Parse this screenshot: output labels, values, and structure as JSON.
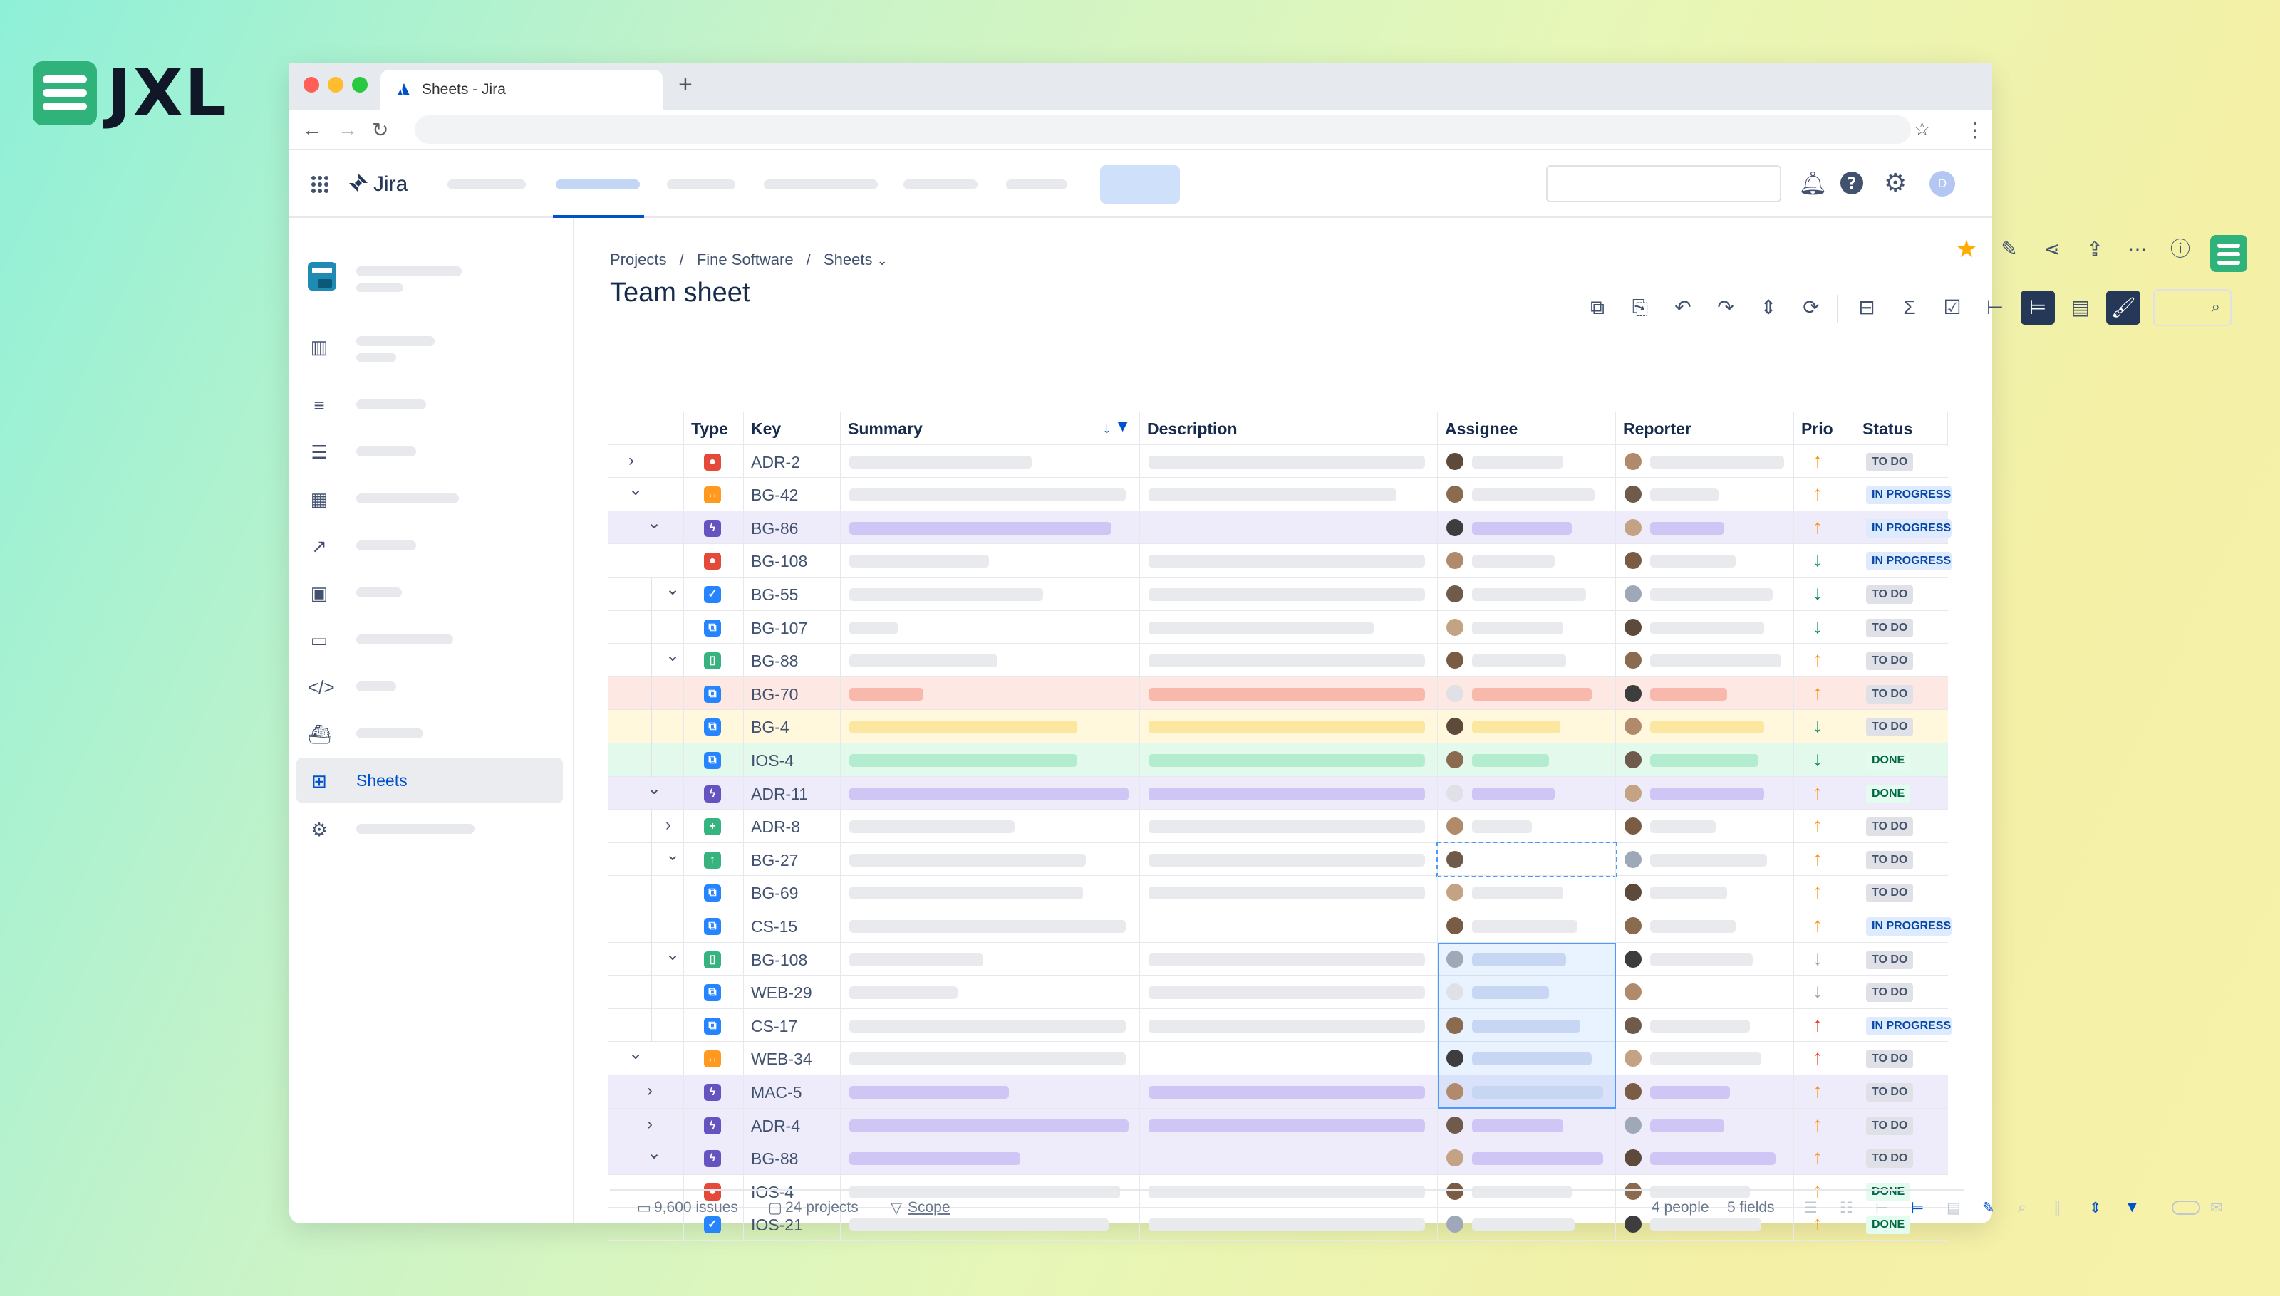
{
  "brand": {
    "logo_text": "JXL"
  },
  "browser": {
    "tab_title": "Sheets - Jira",
    "new_tab": "+"
  },
  "jira": {
    "app_name": "Jira",
    "avatar_initial": "D"
  },
  "sidebar": {
    "active_label": "Sheets"
  },
  "breadcrumb": {
    "projects": "Projects",
    "sep1": "/",
    "project": "Fine Software",
    "sep2": "/",
    "current": "Sheets"
  },
  "page": {
    "title": "Team sheet"
  },
  "columns": [
    "Type",
    "Key",
    "Summary",
    "Description",
    "Assignee",
    "Reporter",
    "Prio",
    "Status"
  ],
  "rows": [
    {
      "key": "ADR-2",
      "type": "bug",
      "depth": 0,
      "chev": ">",
      "prio": "up",
      "status": "TO DO",
      "tint": ""
    },
    {
      "key": "BG-42",
      "type": "epic",
      "depth": 0,
      "chev": "v",
      "prio": "up",
      "status": "IN PROGRESS",
      "tint": ""
    },
    {
      "key": "BG-86",
      "type": "feature",
      "depth": 1,
      "chev": "v",
      "prio": "up",
      "status": "IN PROGRESS",
      "tint": "purple"
    },
    {
      "key": "BG-108",
      "type": "bug",
      "depth": 1,
      "chev": "",
      "prio": "down",
      "status": "IN PROGRESS",
      "tint": ""
    },
    {
      "key": "BG-55",
      "type": "task",
      "depth": 2,
      "chev": "v",
      "prio": "down",
      "status": "TO DO",
      "tint": ""
    },
    {
      "key": "BG-107",
      "type": "subtask",
      "depth": 2,
      "chev": "",
      "prio": "down",
      "status": "TO DO",
      "tint": ""
    },
    {
      "key": "BG-88",
      "type": "story",
      "depth": 2,
      "chev": "v",
      "prio": "up",
      "status": "TO DO",
      "tint": ""
    },
    {
      "key": "BG-70",
      "type": "subtask",
      "depth": 2,
      "chev": "",
      "prio": "up",
      "status": "TO DO",
      "tint": "red"
    },
    {
      "key": "BG-4",
      "type": "subtask",
      "depth": 2,
      "chev": "",
      "prio": "down",
      "status": "TO DO",
      "tint": "yellow"
    },
    {
      "key": "IOS-4",
      "type": "subtask",
      "depth": 2,
      "chev": "",
      "prio": "down",
      "status": "DONE",
      "tint": "green"
    },
    {
      "key": "ADR-11",
      "type": "feature",
      "depth": 1,
      "chev": "v",
      "prio": "up",
      "status": "DONE",
      "tint": "purple"
    },
    {
      "key": "ADR-8",
      "type": "new",
      "depth": 2,
      "chev": ">",
      "prio": "up",
      "status": "TO DO",
      "tint": ""
    },
    {
      "key": "BG-27",
      "type": "improve",
      "depth": 2,
      "chev": "v",
      "prio": "up",
      "status": "TO DO",
      "tint": ""
    },
    {
      "key": "BG-69",
      "type": "subtask",
      "depth": 2,
      "chev": "",
      "prio": "up",
      "status": "TO DO",
      "tint": ""
    },
    {
      "key": "CS-15",
      "type": "subtask",
      "depth": 2,
      "chev": "",
      "prio": "up",
      "status": "IN PROGRESS",
      "tint": ""
    },
    {
      "key": "BG-108",
      "type": "story",
      "depth": 2,
      "chev": "v",
      "prio": "down-gray",
      "status": "TO DO",
      "tint": ""
    },
    {
      "key": "WEB-29",
      "type": "subtask",
      "depth": 2,
      "chev": "",
      "prio": "down-gray",
      "status": "TO DO",
      "tint": ""
    },
    {
      "key": "CS-17",
      "type": "subtask",
      "depth": 2,
      "chev": "",
      "prio": "up-red",
      "status": "IN PROGRESS",
      "tint": ""
    },
    {
      "key": "WEB-34",
      "type": "epic",
      "depth": 0,
      "chev": "v",
      "prio": "up-red",
      "status": "TO DO",
      "tint": ""
    },
    {
      "key": "MAC-5",
      "type": "feature",
      "depth": 1,
      "chev": ">",
      "prio": "up",
      "status": "TO DO",
      "tint": "purple"
    },
    {
      "key": "ADR-4",
      "type": "feature",
      "depth": 1,
      "chev": ">",
      "prio": "up",
      "status": "TO DO",
      "tint": "purple"
    },
    {
      "key": "BG-88",
      "type": "feature",
      "depth": 1,
      "chev": "v",
      "prio": "up",
      "status": "TO DO",
      "tint": "purple"
    },
    {
      "key": "IOS-4",
      "type": "bug",
      "depth": 1,
      "chev": "",
      "prio": "up",
      "status": "DONE",
      "tint": ""
    },
    {
      "key": "IOS-21",
      "type": "task",
      "depth": 1,
      "chev": "",
      "prio": "up",
      "status": "DONE",
      "tint": ""
    }
  ],
  "footer": {
    "issues": "9,600 issues",
    "projects": "24 projects",
    "scope": "Scope",
    "people": "4 people",
    "fields": "5 fields"
  },
  "colors": {
    "accent": "#0052cc",
    "brand_green": "#2fb37a",
    "star": "#ffab00"
  }
}
